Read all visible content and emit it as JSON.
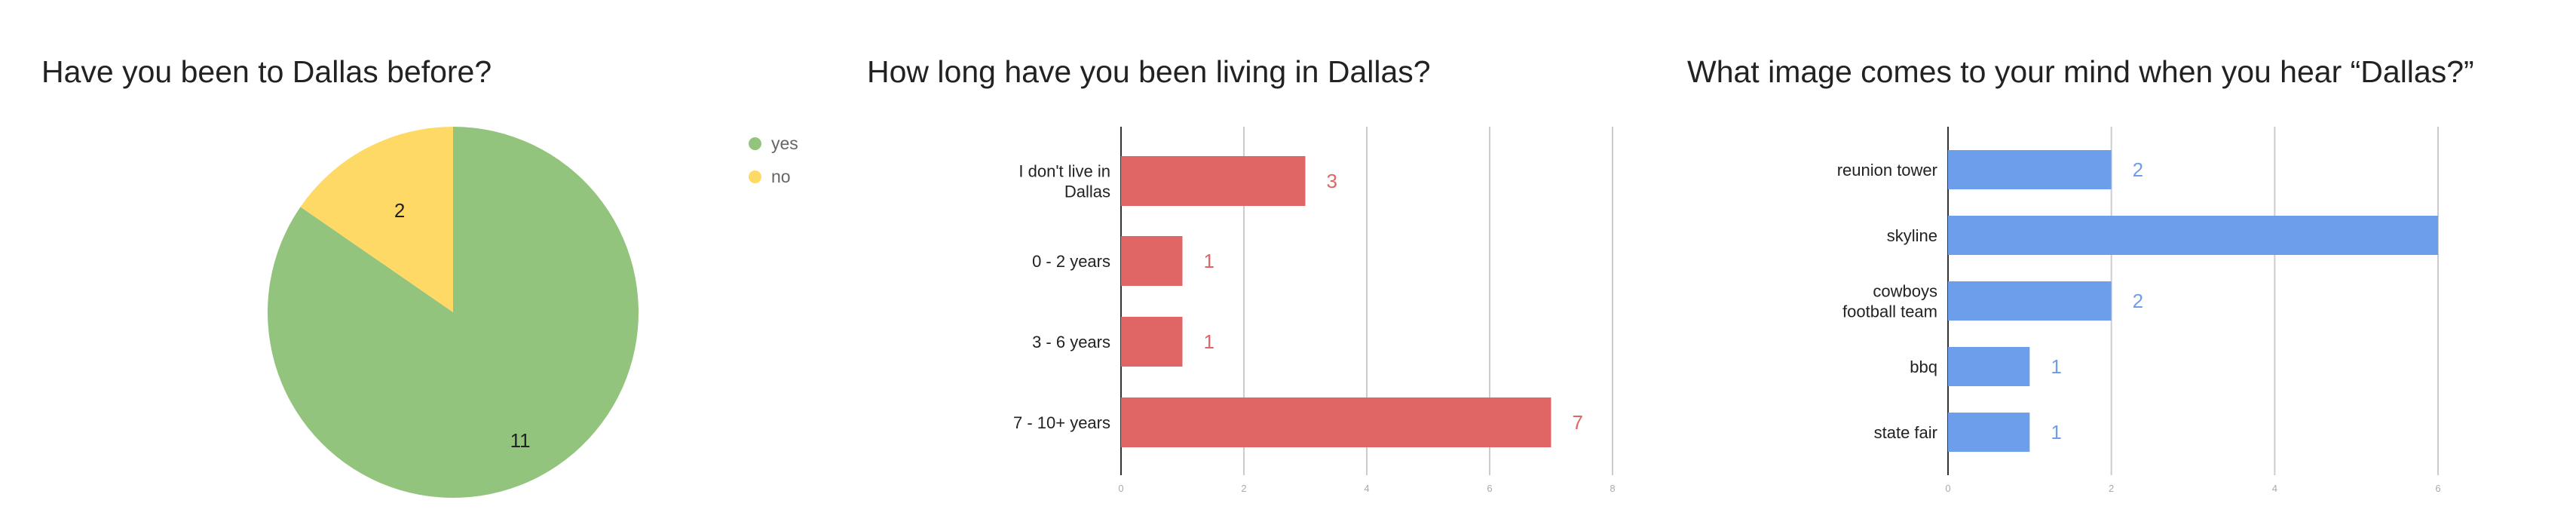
{
  "chart_data": [
    {
      "type": "pie",
      "title": "Have you been to Dallas before?",
      "slices": [
        {
          "label": "yes",
          "value": 11,
          "color": "#93c47d"
        },
        {
          "label": "no",
          "value": 2,
          "color": "#ffd966"
        }
      ],
      "legend": "right"
    },
    {
      "type": "bar",
      "orientation": "horizontal",
      "title": "How long have you been living in Dallas?",
      "categories": [
        "I don't live in Dallas",
        "0 - 2 years",
        "3 - 6 years",
        "7 - 10+ years"
      ],
      "values": [
        3,
        1,
        1,
        7
      ],
      "xlim": [
        0,
        8
      ],
      "xticks": [
        "0",
        "2",
        "4",
        "6",
        "8"
      ],
      "color": "#e06666",
      "grid": true
    },
    {
      "type": "bar",
      "orientation": "horizontal",
      "title": "What image comes to your mind when you hear “Dallas?”",
      "categories": [
        "reunion tower",
        "skyline",
        "cowboys football team",
        "bbq",
        "state fair"
      ],
      "values": [
        2,
        6,
        2,
        1,
        1
      ],
      "value_labels": [
        "2",
        "",
        "2",
        "1",
        "1"
      ],
      "xlim": [
        0,
        6
      ],
      "xticks": [
        "0",
        "2",
        "4",
        "6"
      ],
      "color": "#6d9eeb",
      "grid": true
    }
  ]
}
